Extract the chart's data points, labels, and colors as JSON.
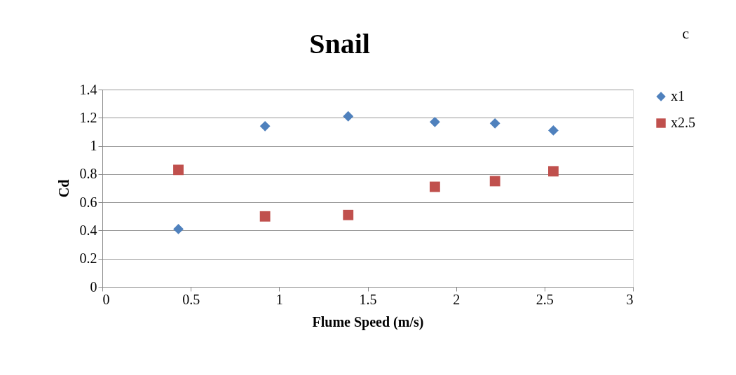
{
  "chart_data": {
    "type": "scatter",
    "title": "Snail",
    "xlabel": "Flume Speed (m/s)",
    "ylabel": "Cd",
    "annotations": [
      "c"
    ],
    "series": [
      {
        "name": "x1",
        "color": "#4f81bd",
        "marker": "diamond",
        "x": [
          0.43,
          0.92,
          1.39,
          1.88,
          2.22,
          2.55
        ],
        "values": [
          0.41,
          1.14,
          1.21,
          1.17,
          1.16,
          1.11
        ]
      },
      {
        "name": "x2.5",
        "color": "#c0504d",
        "marker": "square",
        "x": [
          0.43,
          0.92,
          1.39,
          1.88,
          2.22,
          2.55
        ],
        "values": [
          0.83,
          0.5,
          0.51,
          0.71,
          0.75,
          0.82
        ]
      }
    ],
    "xlim": [
      0,
      3
    ],
    "xticks": [
      0,
      0.5,
      1,
      1.5,
      2,
      2.5,
      3
    ],
    "ylim": [
      0,
      1.4
    ],
    "yticks": [
      0,
      0.2,
      0.4,
      0.6,
      0.8,
      1,
      1.2,
      1.4
    ],
    "grid": "y",
    "legend": "right"
  }
}
